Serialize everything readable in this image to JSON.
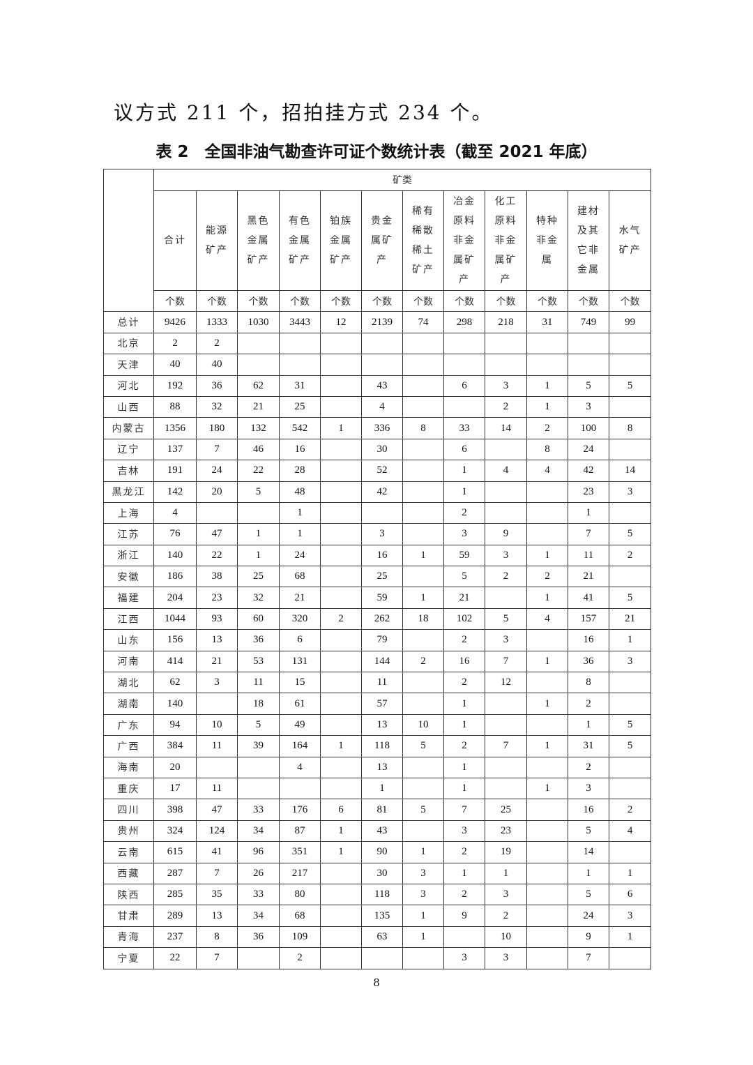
{
  "paragraph": "议方式 211 个，招拍挂方式 234 个。",
  "table_title": "表 2　全国非油气勘查许可证个数统计表（截至 2021 年底）",
  "table": {
    "group_header": "矿类",
    "columns": [
      "合计",
      "能源矿产",
      "黑色金属矿产",
      "有色金属矿产",
      "铂族金属矿产",
      "贵金属矿产",
      "稀有稀散稀土矿产",
      "冶金原料非金属矿产",
      "化工原料非金属矿产",
      "特种非金属",
      "建材及其它非金属",
      "水气矿产"
    ],
    "unit": "个数",
    "rows": [
      {
        "region": "总计",
        "values": [
          "9426",
          "1333",
          "1030",
          "3443",
          "12",
          "2139",
          "74",
          "298",
          "218",
          "31",
          "749",
          "99"
        ]
      },
      {
        "region": "北京",
        "values": [
          "2",
          "2",
          "",
          "",
          "",
          "",
          "",
          "",
          "",
          "",
          "",
          ""
        ]
      },
      {
        "region": "天津",
        "values": [
          "40",
          "40",
          "",
          "",
          "",
          "",
          "",
          "",
          "",
          "",
          "",
          ""
        ]
      },
      {
        "region": "河北",
        "values": [
          "192",
          "36",
          "62",
          "31",
          "",
          "43",
          "",
          "6",
          "3",
          "1",
          "5",
          "5"
        ]
      },
      {
        "region": "山西",
        "values": [
          "88",
          "32",
          "21",
          "25",
          "",
          "4",
          "",
          "",
          "2",
          "1",
          "3",
          ""
        ]
      },
      {
        "region": "内蒙古",
        "values": [
          "1356",
          "180",
          "132",
          "542",
          "1",
          "336",
          "8",
          "33",
          "14",
          "2",
          "100",
          "8"
        ]
      },
      {
        "region": "辽宁",
        "values": [
          "137",
          "7",
          "46",
          "16",
          "",
          "30",
          "",
          "6",
          "",
          "8",
          "24",
          ""
        ]
      },
      {
        "region": "吉林",
        "values": [
          "191",
          "24",
          "22",
          "28",
          "",
          "52",
          "",
          "1",
          "4",
          "4",
          "42",
          "14"
        ]
      },
      {
        "region": "黑龙江",
        "values": [
          "142",
          "20",
          "5",
          "48",
          "",
          "42",
          "",
          "1",
          "",
          "",
          "23",
          "3"
        ]
      },
      {
        "region": "上海",
        "values": [
          "4",
          "",
          "",
          "1",
          "",
          "",
          "",
          "2",
          "",
          "",
          "1",
          ""
        ]
      },
      {
        "region": "江苏",
        "values": [
          "76",
          "47",
          "1",
          "1",
          "",
          "3",
          "",
          "3",
          "9",
          "",
          "7",
          "5"
        ]
      },
      {
        "region": "浙江",
        "values": [
          "140",
          "22",
          "1",
          "24",
          "",
          "16",
          "1",
          "59",
          "3",
          "1",
          "11",
          "2"
        ]
      },
      {
        "region": "安徽",
        "values": [
          "186",
          "38",
          "25",
          "68",
          "",
          "25",
          "",
          "5",
          "2",
          "2",
          "21",
          ""
        ]
      },
      {
        "region": "福建",
        "values": [
          "204",
          "23",
          "32",
          "21",
          "",
          "59",
          "1",
          "21",
          "",
          "1",
          "41",
          "5"
        ]
      },
      {
        "region": "江西",
        "values": [
          "1044",
          "93",
          "60",
          "320",
          "2",
          "262",
          "18",
          "102",
          "5",
          "4",
          "157",
          "21"
        ]
      },
      {
        "region": "山东",
        "values": [
          "156",
          "13",
          "36",
          "6",
          "",
          "79",
          "",
          "2",
          "3",
          "",
          "16",
          "1"
        ]
      },
      {
        "region": "河南",
        "values": [
          "414",
          "21",
          "53",
          "131",
          "",
          "144",
          "2",
          "16",
          "7",
          "1",
          "36",
          "3"
        ]
      },
      {
        "region": "湖北",
        "values": [
          "62",
          "3",
          "11",
          "15",
          "",
          "11",
          "",
          "2",
          "12",
          "",
          "8",
          ""
        ]
      },
      {
        "region": "湖南",
        "values": [
          "140",
          "",
          "18",
          "61",
          "",
          "57",
          "",
          "1",
          "",
          "1",
          "2",
          ""
        ]
      },
      {
        "region": "广东",
        "values": [
          "94",
          "10",
          "5",
          "49",
          "",
          "13",
          "10",
          "1",
          "",
          "",
          "1",
          "5"
        ]
      },
      {
        "region": "广西",
        "values": [
          "384",
          "11",
          "39",
          "164",
          "1",
          "118",
          "5",
          "2",
          "7",
          "1",
          "31",
          "5"
        ]
      },
      {
        "region": "海南",
        "values": [
          "20",
          "",
          "",
          "4",
          "",
          "13",
          "",
          "1",
          "",
          "",
          "2",
          ""
        ]
      },
      {
        "region": "重庆",
        "values": [
          "17",
          "11",
          "",
          "",
          "",
          "1",
          "",
          "1",
          "",
          "1",
          "3",
          ""
        ]
      },
      {
        "region": "四川",
        "values": [
          "398",
          "47",
          "33",
          "176",
          "6",
          "81",
          "5",
          "7",
          "25",
          "",
          "16",
          "2"
        ]
      },
      {
        "region": "贵州",
        "values": [
          "324",
          "124",
          "34",
          "87",
          "1",
          "43",
          "",
          "3",
          "23",
          "",
          "5",
          "4"
        ]
      },
      {
        "region": "云南",
        "values": [
          "615",
          "41",
          "96",
          "351",
          "1",
          "90",
          "1",
          "2",
          "19",
          "",
          "14",
          ""
        ]
      },
      {
        "region": "西藏",
        "values": [
          "287",
          "7",
          "26",
          "217",
          "",
          "30",
          "3",
          "1",
          "1",
          "",
          "1",
          "1"
        ]
      },
      {
        "region": "陕西",
        "values": [
          "285",
          "35",
          "33",
          "80",
          "",
          "118",
          "3",
          "2",
          "3",
          "",
          "5",
          "6"
        ]
      },
      {
        "region": "甘肃",
        "values": [
          "289",
          "13",
          "34",
          "68",
          "",
          "135",
          "1",
          "9",
          "2",
          "",
          "24",
          "3"
        ]
      },
      {
        "region": "青海",
        "values": [
          "237",
          "8",
          "36",
          "109",
          "",
          "63",
          "1",
          "",
          "10",
          "",
          "9",
          "1"
        ]
      },
      {
        "region": "宁夏",
        "values": [
          "22",
          "7",
          "",
          "2",
          "",
          "",
          "",
          "3",
          "3",
          "",
          "7",
          ""
        ]
      }
    ]
  },
  "page_number": "8"
}
